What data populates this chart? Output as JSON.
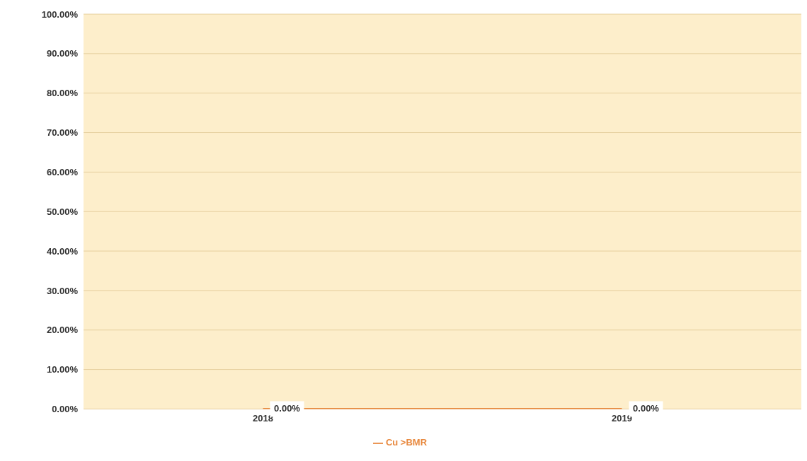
{
  "chart_data": {
    "type": "line",
    "categories": [
      "2018",
      "2019"
    ],
    "series": [
      {
        "name": "Cu >BMR",
        "color": "#e8893f",
        "values": [
          0,
          0
        ],
        "value_labels": [
          "0.00%",
          "0.00%"
        ]
      }
    ],
    "ylim": [
      0,
      100
    ],
    "yticks": [
      {
        "value": 0,
        "label": "0.00%"
      },
      {
        "value": 10,
        "label": "10.00%"
      },
      {
        "value": 20,
        "label": "20.00%"
      },
      {
        "value": 30,
        "label": "30.00%"
      },
      {
        "value": 40,
        "label": "40.00%"
      },
      {
        "value": 50,
        "label": "50.00%"
      },
      {
        "value": 60,
        "label": "60.00%"
      },
      {
        "value": 70,
        "label": "70.00%"
      },
      {
        "value": 80,
        "label": "80.00%"
      },
      {
        "value": 90,
        "label": "90.00%"
      },
      {
        "value": 100,
        "label": "100.00%"
      }
    ],
    "grid": "y",
    "legend": "bottom",
    "marker": "none",
    "line_style": "solid"
  }
}
